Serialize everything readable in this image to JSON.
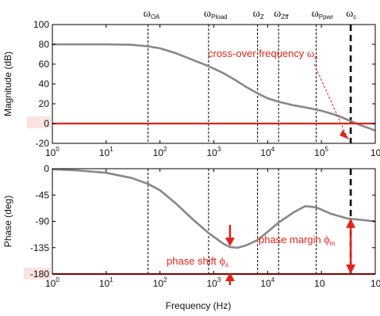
{
  "chart_data": [
    {
      "type": "line",
      "ylabel": "Magnitude (dB)",
      "xscale": "log",
      "xlim": [
        1,
        1000000
      ],
      "ylim": [
        -20,
        100
      ],
      "yticks": [
        "100",
        "80",
        "60",
        "40",
        "20",
        "0",
        "-20"
      ],
      "xticks": [
        {
          "base": "10",
          "exp": "0"
        },
        {
          "base": "10",
          "exp": "1"
        },
        {
          "base": "10",
          "exp": "2"
        },
        {
          "base": "10",
          "exp": "3"
        },
        {
          "base": "10",
          "exp": "4"
        },
        {
          "base": "10",
          "exp": "5"
        },
        {
          "base": "10",
          "exp": ""
        }
      ],
      "series": [
        {
          "x": [
            1,
            3,
            10,
            30,
            60,
            100,
            200,
            400,
            800,
            1500,
            2500,
            4000,
            6500,
            10000,
            16000,
            30000,
            60000,
            100000,
            200000,
            300000,
            500000,
            1000000
          ],
          "y": [
            80,
            80,
            80,
            79.5,
            78,
            76,
            71,
            64.5,
            58,
            51,
            44,
            37,
            30.5,
            25.5,
            22,
            18.5,
            15.5,
            13,
            8,
            4,
            -1,
            -7
          ],
          "color": "#888888"
        },
        {
          "x": [
            1,
            1000000
          ],
          "y": [
            0,
            0
          ],
          "color": "#e2231a"
        }
      ]
    },
    {
      "type": "line",
      "xlabel": "Frequency (Hz)",
      "ylabel": "Phase (deg)",
      "xscale": "log",
      "xlim": [
        1,
        1000000
      ],
      "ylim": [
        -180,
        0
      ],
      "yticks": [
        "0",
        "-45",
        "-90",
        "-135",
        "-180"
      ],
      "xticks": [
        {
          "base": "10",
          "exp": "0"
        },
        {
          "base": "10",
          "exp": "1"
        },
        {
          "base": "10",
          "exp": "2"
        },
        {
          "base": "10",
          "exp": "3"
        },
        {
          "base": "10",
          "exp": "4"
        },
        {
          "base": "10",
          "exp": ""
        },
        {
          "base": "10",
          "exp": ""
        }
      ],
      "series": [
        {
          "x": [
            1,
            3,
            10,
            30,
            60,
            100,
            200,
            400,
            800,
            1500,
            2000,
            2800,
            4000,
            6500,
            10000,
            16000,
            30000,
            50000,
            80000,
            150000,
            300000,
            1000000
          ],
          "y": [
            -1,
            -3,
            -7,
            -16,
            -26,
            -37,
            -60,
            -86,
            -110,
            -128,
            -134,
            -135,
            -131,
            -122,
            -108,
            -92,
            -75,
            -64,
            -66,
            -77,
            -85,
            -90
          ],
          "color": "#888888"
        },
        {
          "x": [
            1,
            1000000
          ],
          "y": [
            -180,
            -180
          ],
          "color": "#e2231a"
        }
      ]
    }
  ],
  "markers": [
    {
      "symbol": "ω",
      "sub": "OA",
      "f": 60
    },
    {
      "symbol": "ω",
      "sub": "Pload",
      "f": 800
    },
    {
      "symbol": "ω",
      "sub": "Z",
      "f": 6500
    },
    {
      "symbol": "ω",
      "sub": "Zff",
      "f": 16000
    },
    {
      "symbol": "ω",
      "sub": "Ppwr",
      "f": 80000
    },
    {
      "symbol": "ω",
      "sub": "c",
      "f": 350000
    }
  ],
  "annotations": {
    "crossover": {
      "text": "cross-over frequency ",
      "symbol": "ω",
      "sub": "c"
    },
    "phase_margin": {
      "text": "phase margin ",
      "symbol": "ϕ",
      "sub": "m"
    },
    "phase_shift": {
      "text": "phase shift ",
      "symbol": "ϕ",
      "sub": "s"
    }
  },
  "colors": {
    "curve": "#888888",
    "reference": "#e2231a",
    "annotation": "#e2231a",
    "grid": "#000000"
  }
}
